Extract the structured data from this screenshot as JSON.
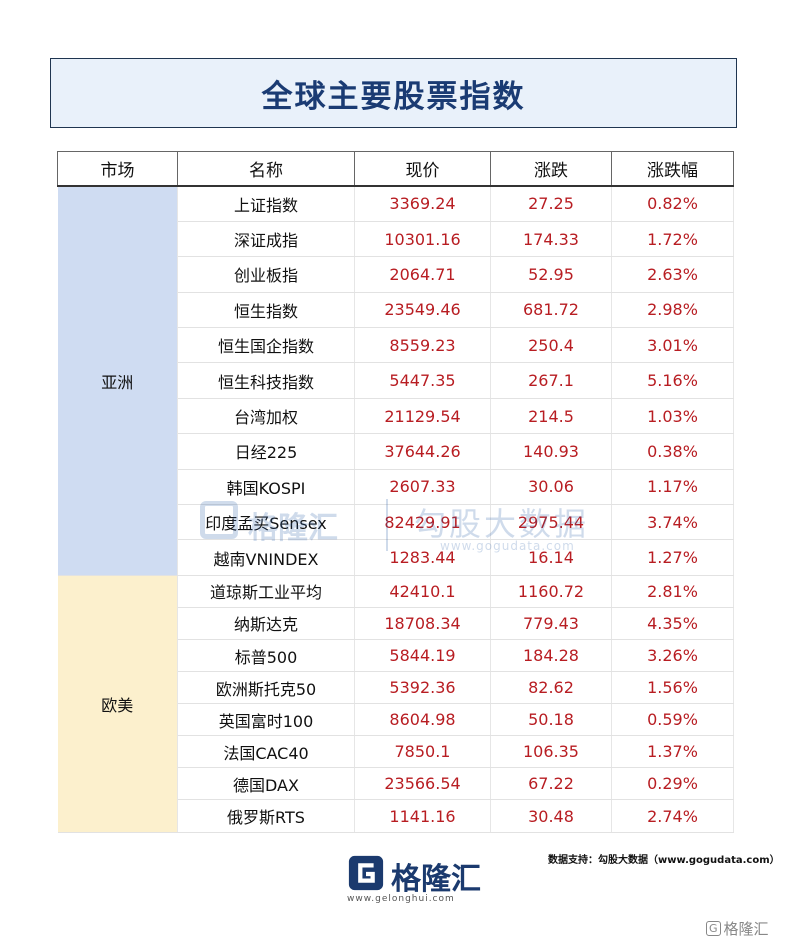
{
  "title": "全球主要股票指数",
  "headers": [
    "市场",
    "名称",
    "现价",
    "涨跌",
    "涨跌幅"
  ],
  "regions": [
    {
      "label": "亚洲",
      "rows": [
        {
          "name": "上证指数",
          "price": "3369.24",
          "change": "27.25",
          "pct": "0.82%"
        },
        {
          "name": "深证成指",
          "price": "10301.16",
          "change": "174.33",
          "pct": "1.72%"
        },
        {
          "name": "创业板指",
          "price": "2064.71",
          "change": "52.95",
          "pct": "2.63%"
        },
        {
          "name": "恒生指数",
          "price": "23549.46",
          "change": "681.72",
          "pct": "2.98%"
        },
        {
          "name": "恒生国企指数",
          "price": "8559.23",
          "change": "250.4",
          "pct": "3.01%"
        },
        {
          "name": "恒生科技指数",
          "price": "5447.35",
          "change": "267.1",
          "pct": "5.16%"
        },
        {
          "name": "台湾加权",
          "price": "21129.54",
          "change": "214.5",
          "pct": "1.03%"
        },
        {
          "name": "日经225",
          "price": "37644.26",
          "change": "140.93",
          "pct": "0.38%"
        },
        {
          "name": "韩国KOSPI",
          "price": "2607.33",
          "change": "30.06",
          "pct": "1.17%"
        },
        {
          "name": "印度孟买Sensex",
          "price": "82429.91",
          "change": "2975.44",
          "pct": "3.74%"
        },
        {
          "name": "越南VNINDEX",
          "price": "1283.44",
          "change": "16.14",
          "pct": "1.27%"
        }
      ]
    },
    {
      "label": "欧美",
      "rows": [
        {
          "name": "道琼斯工业平均",
          "price": "42410.1",
          "change": "1160.72",
          "pct": "2.81%"
        },
        {
          "name": "纳斯达克",
          "price": "18708.34",
          "change": "779.43",
          "pct": "4.35%"
        },
        {
          "name": "标普500",
          "price": "5844.19",
          "change": "184.28",
          "pct": "3.26%"
        },
        {
          "name": "欧洲斯托克50",
          "price": "5392.36",
          "change": "82.62",
          "pct": "1.56%"
        },
        {
          "name": "英国富时100",
          "price": "8604.98",
          "change": "50.18",
          "pct": "0.59%"
        },
        {
          "name": "法国CAC40",
          "price": "7850.1",
          "change": "106.35",
          "pct": "1.37%"
        },
        {
          "name": "德国DAX",
          "price": "23566.54",
          "change": "67.22",
          "pct": "0.29%"
        },
        {
          "name": "俄罗斯RTS",
          "price": "1141.16",
          "change": "30.48",
          "pct": "2.74%"
        }
      ]
    }
  ],
  "watermark": {
    "brand": "格隆汇",
    "product": "勾股大数据",
    "url": "www.gogudata.com"
  },
  "source_note": "数据支持：勾股大数据（www.gogudata.com）",
  "logo": {
    "name": "格隆汇",
    "url": "www.gelonghui.com"
  },
  "corner_mark": "格隆汇",
  "colors": {
    "title": "#1a3b73",
    "asia_bg": "#cfdcf2",
    "europe_bg": "#fcf0cd",
    "value_red": "#b81d22"
  }
}
